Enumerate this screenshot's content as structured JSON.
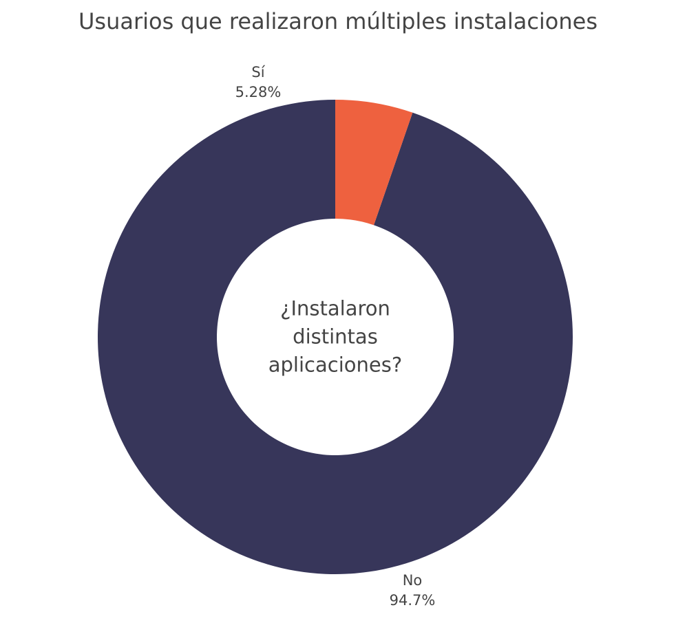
{
  "chart_data": {
    "type": "pie",
    "title": "Usuarios que realizaron múltiples instalaciones",
    "hole": true,
    "center_text": [
      "¿Instalaron",
      "distintas",
      "aplicaciones?"
    ],
    "categories": [
      "No",
      "Sí"
    ],
    "values": [
      94.72,
      5.28
    ],
    "percent_labels": [
      "94.7%",
      "5.28%"
    ],
    "colors": [
      "#37365a",
      "#ee613f"
    ],
    "direction": "counterclockwise",
    "start": "top",
    "legend": "none"
  }
}
